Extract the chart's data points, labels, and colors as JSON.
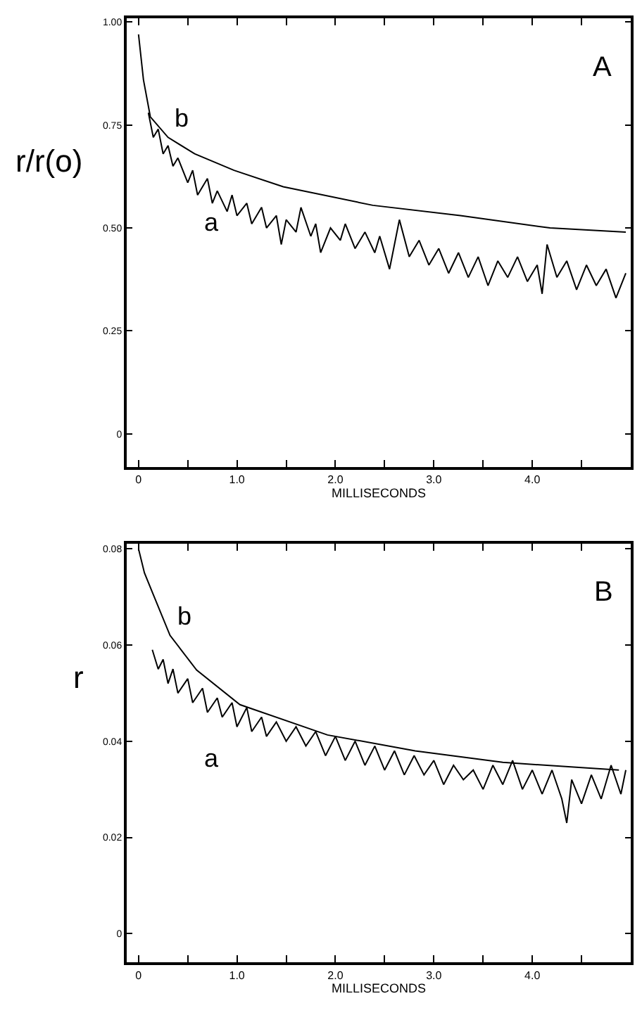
{
  "chart_data": [
    {
      "type": "line",
      "xlabel": "MILLISECONDS",
      "ylabel": "r/r(o)",
      "xlim": [
        -0.12,
        5.0
      ],
      "ylim": [
        -0.08,
        1.01
      ],
      "xticks": [
        0,
        {
          "value": 0.5,
          "label": null
        },
        {
          "value": 1,
          "label": "1.0"
        },
        {
          "value": 1.5,
          "label": null
        },
        {
          "value": 2,
          "label": "2.0"
        },
        {
          "value": 2.5,
          "label": null
        },
        {
          "value": 3,
          "label": "3.0"
        },
        {
          "value": 3.5,
          "label": null
        },
        {
          "value": 4,
          "label": "4.0"
        },
        {
          "value": 4.5,
          "label": null
        }
      ],
      "yticks": [
        0,
        {
          "value": 0.25,
          "label": "0.25"
        },
        {
          "value": 0.5,
          "label": "0.50"
        },
        {
          "value": 0.75,
          "label": "0.75"
        },
        {
          "value": 1,
          "label": "1.00"
        }
      ],
      "marker": "none",
      "line_style": "solid",
      "series": [
        {
          "name": "a",
          "color": "#000000",
          "x": [
            0.1,
            0.15,
            0.2,
            0.25,
            0.3,
            0.35,
            0.4,
            0.5,
            0.55,
            0.6,
            0.7,
            0.75,
            0.8,
            0.9,
            0.95,
            1.0,
            1.1,
            1.15,
            1.25,
            1.3,
            1.4,
            1.45,
            1.5,
            1.6,
            1.65,
            1.75,
            1.8,
            1.85,
            1.95,
            2.05,
            2.1,
            2.2,
            2.3,
            2.4,
            2.45,
            2.55,
            2.6,
            2.65,
            2.75,
            2.85,
            2.95,
            3.05,
            3.15,
            3.25,
            3.35,
            3.45,
            3.55,
            3.65,
            3.75,
            3.85,
            3.95,
            4.05,
            4.1,
            4.15,
            4.25,
            4.35,
            4.45,
            4.55,
            4.65,
            4.75,
            4.85,
            4.95
          ],
          "values": [
            0.78,
            0.72,
            0.74,
            0.68,
            0.7,
            0.65,
            0.67,
            0.61,
            0.64,
            0.58,
            0.62,
            0.56,
            0.59,
            0.54,
            0.58,
            0.53,
            0.56,
            0.51,
            0.55,
            0.5,
            0.53,
            0.46,
            0.52,
            0.49,
            0.55,
            0.48,
            0.51,
            0.44,
            0.5,
            0.47,
            0.51,
            0.45,
            0.49,
            0.44,
            0.48,
            0.4,
            0.46,
            0.52,
            0.43,
            0.47,
            0.41,
            0.45,
            0.39,
            0.44,
            0.38,
            0.43,
            0.36,
            0.42,
            0.38,
            0.43,
            0.37,
            0.41,
            0.34,
            0.46,
            0.38,
            0.42,
            0.35,
            0.41,
            0.36,
            0.4,
            0.33,
            0.39
          ]
        },
        {
          "name": "b",
          "color": "#000000",
          "x": [
            0,
            0.05,
            0.12,
            0.3,
            0.57,
            0.97,
            1.47,
            2.38,
            3.27,
            4.18,
            4.95
          ],
          "values": [
            0.97,
            0.86,
            0.77,
            0.72,
            0.68,
            0.64,
            0.6,
            0.555,
            0.53,
            0.5,
            0.49
          ]
        }
      ],
      "annotations": [
        "A"
      ]
    },
    {
      "type": "line",
      "xlabel": "MILLISECONDS",
      "ylabel": "r",
      "xlim": [
        -0.12,
        5.0
      ],
      "ylim": [
        -0.006,
        0.081
      ],
      "xticks": [
        0,
        {
          "value": 0.5,
          "label": null
        },
        {
          "value": 1,
          "label": "1.0"
        },
        {
          "value": 1.5,
          "label": null
        },
        {
          "value": 2,
          "label": "2.0"
        },
        {
          "value": 2.5,
          "label": null
        },
        {
          "value": 3,
          "label": "3.0"
        },
        {
          "value": 3.5,
          "label": null
        },
        {
          "value": 4,
          "label": "4.0"
        },
        {
          "value": 4.5,
          "label": null
        }
      ],
      "yticks": [
        0,
        {
          "value": 0.02,
          "label": "0.02"
        },
        {
          "value": 0.04,
          "label": "0.04"
        },
        {
          "value": 0.06,
          "label": "0.06"
        },
        {
          "value": 0.08,
          "label": "0.08"
        }
      ],
      "marker": "none",
      "line_style": "solid",
      "series": [
        {
          "name": "a",
          "color": "#000000",
          "x": [
            0.14,
            0.2,
            0.25,
            0.3,
            0.35,
            0.4,
            0.5,
            0.55,
            0.65,
            0.7,
            0.8,
            0.85,
            0.95,
            1.0,
            1.1,
            1.15,
            1.25,
            1.3,
            1.4,
            1.5,
            1.6,
            1.7,
            1.8,
            1.9,
            2.0,
            2.1,
            2.2,
            2.3,
            2.4,
            2.5,
            2.6,
            2.7,
            2.8,
            2.9,
            3.0,
            3.1,
            3.2,
            3.3,
            3.4,
            3.5,
            3.6,
            3.7,
            3.8,
            3.9,
            4.0,
            4.1,
            4.2,
            4.3,
            4.35,
            4.4,
            4.5,
            4.6,
            4.7,
            4.8,
            4.9,
            4.95
          ],
          "values": [
            0.059,
            0.055,
            0.057,
            0.052,
            0.055,
            0.05,
            0.053,
            0.048,
            0.051,
            0.046,
            0.049,
            0.045,
            0.048,
            0.043,
            0.047,
            0.042,
            0.045,
            0.041,
            0.044,
            0.04,
            0.043,
            0.039,
            0.042,
            0.037,
            0.041,
            0.036,
            0.04,
            0.035,
            0.039,
            0.034,
            0.038,
            0.033,
            0.037,
            0.033,
            0.036,
            0.031,
            0.035,
            0.032,
            0.034,
            0.03,
            0.035,
            0.031,
            0.036,
            0.03,
            0.034,
            0.029,
            0.034,
            0.028,
            0.023,
            0.032,
            0.027,
            0.033,
            0.028,
            0.035,
            0.029,
            0.034
          ]
        },
        {
          "name": "b",
          "color": "#000000",
          "x": [
            0,
            0.06,
            0.14,
            0.32,
            0.59,
            1.03,
            1.92,
            2.81,
            3.7,
            4.88
          ],
          "values": [
            0.08,
            0.075,
            0.071,
            0.062,
            0.0548,
            0.0476,
            0.0413,
            0.038,
            0.0356,
            0.034
          ]
        }
      ],
      "annotations": [
        "B"
      ]
    }
  ]
}
